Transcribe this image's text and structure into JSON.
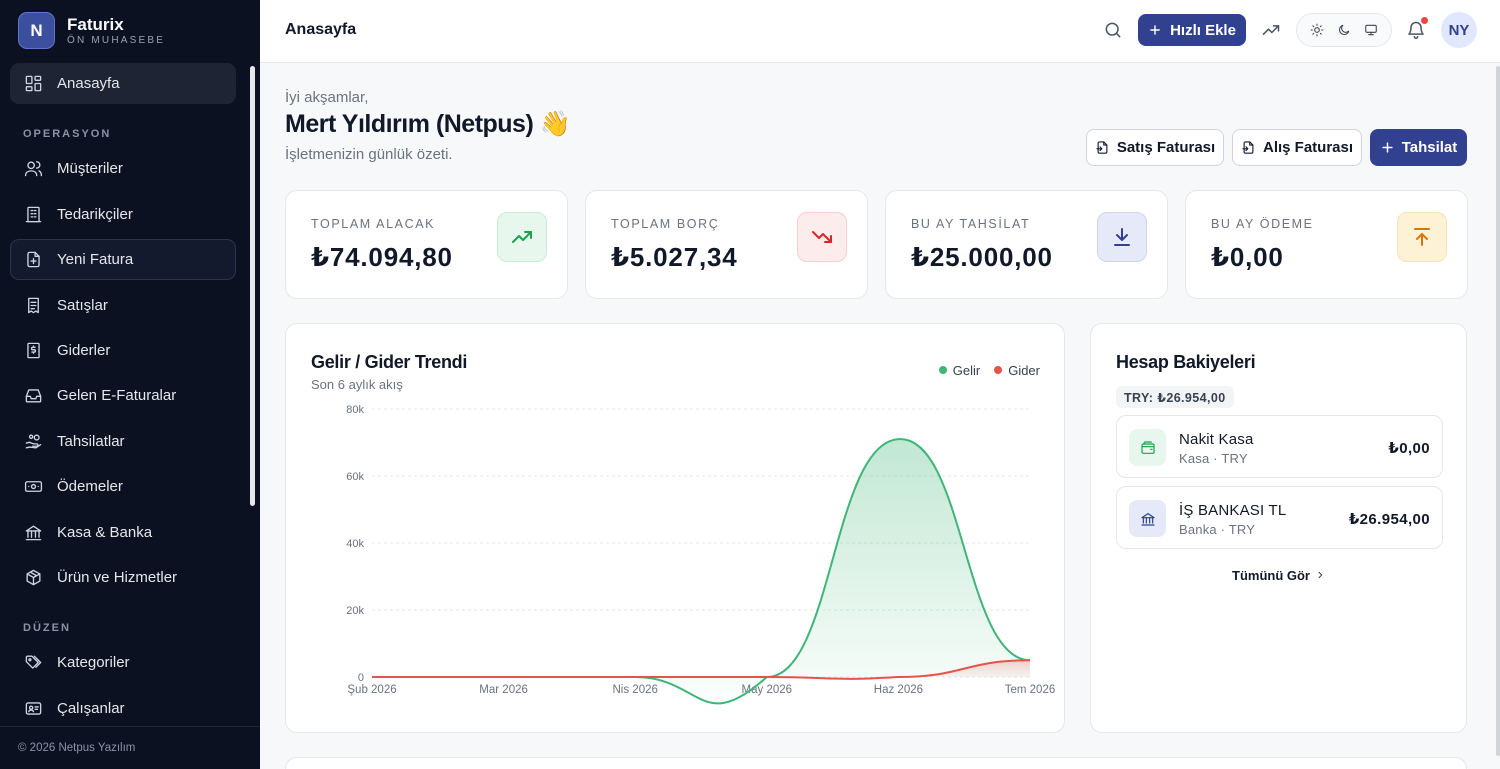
{
  "brand": {
    "logo_letter": "N",
    "name": "Faturix",
    "subtitle": "ÖN MUHASEBE"
  },
  "sidebar": {
    "items_top": [
      {
        "label": "Anasayfa",
        "icon": "dashboard-icon"
      }
    ],
    "sections": [
      {
        "title": "OPERASYON",
        "items": [
          {
            "label": "Müşteriler",
            "icon": "users-icon"
          },
          {
            "label": "Tedarikçiler",
            "icon": "building-icon"
          },
          {
            "label": "Yeni Fatura",
            "icon": "new-invoice-icon"
          },
          {
            "label": "Satışlar",
            "icon": "receipt-icon"
          },
          {
            "label": "Giderler",
            "icon": "expense-icon"
          },
          {
            "label": "Gelen E-Faturalar",
            "icon": "inbox-icon"
          },
          {
            "label": "Tahsilatlar",
            "icon": "hand-coins-icon"
          },
          {
            "label": "Ödemeler",
            "icon": "banknote-icon"
          },
          {
            "label": "Kasa & Banka",
            "icon": "bank-icon"
          },
          {
            "label": "Ürün ve Hizmetler",
            "icon": "package-icon"
          }
        ]
      },
      {
        "title": "DÜZEN",
        "items": [
          {
            "label": "Kategoriler",
            "icon": "tags-icon"
          },
          {
            "label": "Çalışanlar",
            "icon": "id-card-icon"
          }
        ]
      }
    ],
    "footer": "© 2026 Netpus Yazılım"
  },
  "topbar": {
    "title": "Anasayfa",
    "quick_add": "Hızlı Ekle",
    "avatar": "NY"
  },
  "greeting": {
    "hello": "İyi akşamlar,",
    "name": "Mert Yıldırım (Netpus) 👋",
    "subtitle": "İşletmenizin günlük özeti."
  },
  "actions": {
    "sales_invoice": "Satış Faturası",
    "purchase_invoice": "Alış Faturası",
    "collection": "Tahsilat"
  },
  "stats": [
    {
      "label": "TOPLAM ALACAK",
      "value": "₺74.094,80",
      "icon": "trending-up-icon",
      "color": "#16a34a",
      "bg": "#e8f7ee"
    },
    {
      "label": "TOPLAM BORÇ",
      "value": "₺5.027,34",
      "icon": "trending-down-icon",
      "color": "#dc2626",
      "bg": "#fdecec"
    },
    {
      "label": "BU AY TAHSİLAT",
      "value": "₺25.000,00",
      "icon": "download-icon",
      "color": "#31418f",
      "bg": "#e6eaf8"
    },
    {
      "label": "BU AY ÖDEME",
      "value": "₺0,00",
      "icon": "upload-icon",
      "color": "#d97706",
      "bg": "#fdf1d6"
    }
  ],
  "trend": {
    "title": "Gelir / Gider Trendi",
    "subtitle": "Son 6 aylık akış",
    "legend_income": "Gelir",
    "legend_expense": "Gider"
  },
  "chart_data": {
    "type": "area",
    "categories": [
      "Şub 2026",
      "Mar 2026",
      "Nis 2026",
      "May 2026",
      "Haz 2026",
      "Tem 2026"
    ],
    "y_ticks": [
      "0",
      "20k",
      "40k",
      "60k",
      "80k"
    ],
    "ylim": [
      0,
      80000
    ],
    "series": [
      {
        "name": "Gelir",
        "values": [
          0,
          0,
          0,
          0,
          71000,
          5000
        ],
        "color": "#3fb577"
      },
      {
        "name": "Gider",
        "values": [
          0,
          0,
          0,
          0,
          0,
          5000
        ],
        "color": "#e5534b"
      }
    ],
    "grid": true,
    "legend": "top-right"
  },
  "balances": {
    "title": "Hesap Bakiyeleri",
    "total_badge": "TRY: ₺26.954,00",
    "accounts": [
      {
        "name": "Nakit Kasa",
        "meta": "Kasa · TRY",
        "balance": "₺0,00",
        "icon": "wallet-icon",
        "color": "#16a34a",
        "bg": "#e8f7ee"
      },
      {
        "name": "İŞ BANKASI TL",
        "meta": "Banka · TRY",
        "balance": "₺26.954,00",
        "icon": "bank-icon",
        "color": "#31418f",
        "bg": "#e6eaf8"
      }
    ],
    "see_all": "Tümünü Gör"
  }
}
